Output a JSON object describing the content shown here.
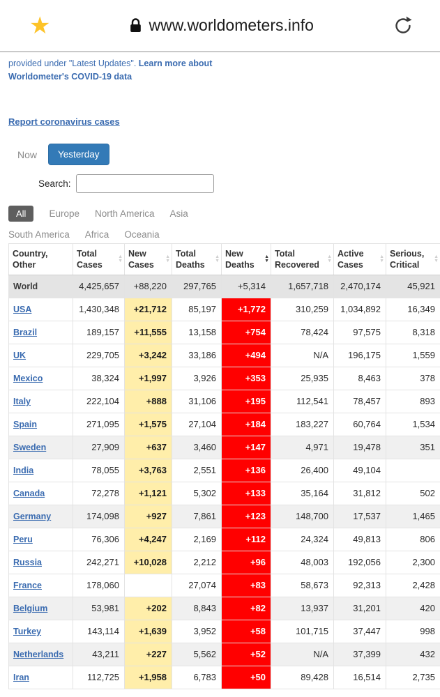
{
  "browser": {
    "url": "www.worldometers.info"
  },
  "intro": {
    "prefix": "provided under \"Latest Updates\". ",
    "link_part1": "Learn more about",
    "link_part2": "Worldometer's COVID-19 data"
  },
  "report_link_label": "Report coronavirus cases",
  "time_toggle": {
    "now_label": "Now",
    "yesterday_label": "Yesterday",
    "selected": "Yesterday"
  },
  "search": {
    "label": "Search:",
    "value": ""
  },
  "region_tabs": [
    {
      "label": "All",
      "active": true
    },
    {
      "label": "Europe",
      "active": false
    },
    {
      "label": "North America",
      "active": false
    },
    {
      "label": "Asia",
      "active": false
    },
    {
      "label": "South America",
      "active": false
    },
    {
      "label": "Africa",
      "active": false
    },
    {
      "label": "Oceania",
      "active": false
    }
  ],
  "colors": {
    "link_blue": "#3a6bb0",
    "button_blue": "#337ab7",
    "highlight_yellow": "#ffeeaa",
    "highlight_red": "#ff0000",
    "active_filter_gray": "#5e5e5e",
    "world_row_gray": "#e4e4e4"
  },
  "table": {
    "columns": [
      {
        "key": "country",
        "line1": "Country,",
        "line2": "Other",
        "sortable": false
      },
      {
        "key": "total-cases",
        "line1": "Total",
        "line2": "Cases",
        "sortable": true
      },
      {
        "key": "new-cases",
        "line1": "New",
        "line2": "Cases",
        "sortable": true
      },
      {
        "key": "total-deaths",
        "line1": "Total",
        "line2": "Deaths",
        "sortable": true
      },
      {
        "key": "new-deaths",
        "line1": "New",
        "line2": "Deaths",
        "sortable": true,
        "sorted": "desc"
      },
      {
        "key": "total-recovered",
        "line1": "Total",
        "line2": "Recovered",
        "sortable": true
      },
      {
        "key": "active-cases",
        "line1": "Active",
        "line2": "Cases",
        "sortable": true
      },
      {
        "key": "serious-critical",
        "line1": "Serious,",
        "line2": "Critical",
        "sortable": true
      }
    ],
    "world_row": {
      "country": "World",
      "total_cases": "4,425,657",
      "new_cases": "+88,220",
      "total_deaths": "297,765",
      "new_deaths": "+5,314",
      "total_recovered": "1,657,718",
      "active_cases": "2,470,174",
      "serious_critical": "45,921"
    },
    "rows": [
      {
        "country": "USA",
        "total_cases": "1,430,348",
        "new_cases": "+21,712",
        "total_deaths": "85,197",
        "new_deaths": "+1,772",
        "total_recovered": "310,259",
        "active_cases": "1,034,892",
        "serious_critical": "16,349",
        "striped": false
      },
      {
        "country": "Brazil",
        "total_cases": "189,157",
        "new_cases": "+11,555",
        "total_deaths": "13,158",
        "new_deaths": "+754",
        "total_recovered": "78,424",
        "active_cases": "97,575",
        "serious_critical": "8,318",
        "striped": false
      },
      {
        "country": "UK",
        "total_cases": "229,705",
        "new_cases": "+3,242",
        "total_deaths": "33,186",
        "new_deaths": "+494",
        "total_recovered": "N/A",
        "active_cases": "196,175",
        "serious_critical": "1,559",
        "striped": false
      },
      {
        "country": "Mexico",
        "total_cases": "38,324",
        "new_cases": "+1,997",
        "total_deaths": "3,926",
        "new_deaths": "+353",
        "total_recovered": "25,935",
        "active_cases": "8,463",
        "serious_critical": "378",
        "striped": false
      },
      {
        "country": "Italy",
        "total_cases": "222,104",
        "new_cases": "+888",
        "total_deaths": "31,106",
        "new_deaths": "+195",
        "total_recovered": "112,541",
        "active_cases": "78,457",
        "serious_critical": "893",
        "striped": false
      },
      {
        "country": "Spain",
        "total_cases": "271,095",
        "new_cases": "+1,575",
        "total_deaths": "27,104",
        "new_deaths": "+184",
        "total_recovered": "183,227",
        "active_cases": "60,764",
        "serious_critical": "1,534",
        "striped": false
      },
      {
        "country": "Sweden",
        "total_cases": "27,909",
        "new_cases": "+637",
        "total_deaths": "3,460",
        "new_deaths": "+147",
        "total_recovered": "4,971",
        "active_cases": "19,478",
        "serious_critical": "351",
        "striped": true
      },
      {
        "country": "India",
        "total_cases": "78,055",
        "new_cases": "+3,763",
        "total_deaths": "2,551",
        "new_deaths": "+136",
        "total_recovered": "26,400",
        "active_cases": "49,104",
        "serious_critical": "",
        "striped": false
      },
      {
        "country": "Canada",
        "total_cases": "72,278",
        "new_cases": "+1,121",
        "total_deaths": "5,302",
        "new_deaths": "+133",
        "total_recovered": "35,164",
        "active_cases": "31,812",
        "serious_critical": "502",
        "striped": false
      },
      {
        "country": "Germany",
        "total_cases": "174,098",
        "new_cases": "+927",
        "total_deaths": "7,861",
        "new_deaths": "+123",
        "total_recovered": "148,700",
        "active_cases": "17,537",
        "serious_critical": "1,465",
        "striped": true
      },
      {
        "country": "Peru",
        "total_cases": "76,306",
        "new_cases": "+4,247",
        "total_deaths": "2,169",
        "new_deaths": "+112",
        "total_recovered": "24,324",
        "active_cases": "49,813",
        "serious_critical": "806",
        "striped": false
      },
      {
        "country": "Russia",
        "total_cases": "242,271",
        "new_cases": "+10,028",
        "total_deaths": "2,212",
        "new_deaths": "+96",
        "total_recovered": "48,003",
        "active_cases": "192,056",
        "serious_critical": "2,300",
        "striped": false
      },
      {
        "country": "France",
        "total_cases": "178,060",
        "new_cases": "",
        "total_deaths": "27,074",
        "new_deaths": "+83",
        "total_recovered": "58,673",
        "active_cases": "92,313",
        "serious_critical": "2,428",
        "striped": false
      },
      {
        "country": "Belgium",
        "total_cases": "53,981",
        "new_cases": "+202",
        "total_deaths": "8,843",
        "new_deaths": "+82",
        "total_recovered": "13,937",
        "active_cases": "31,201",
        "serious_critical": "420",
        "striped": true
      },
      {
        "country": "Turkey",
        "total_cases": "143,114",
        "new_cases": "+1,639",
        "total_deaths": "3,952",
        "new_deaths": "+58",
        "total_recovered": "101,715",
        "active_cases": "37,447",
        "serious_critical": "998",
        "striped": false
      },
      {
        "country": "Netherlands",
        "total_cases": "43,211",
        "new_cases": "+227",
        "total_deaths": "5,562",
        "new_deaths": "+52",
        "total_recovered": "N/A",
        "active_cases": "37,399",
        "serious_critical": "432",
        "striped": true
      },
      {
        "country": "Iran",
        "total_cases": "112,725",
        "new_cases": "+1,958",
        "total_deaths": "6,783",
        "new_deaths": "+50",
        "total_recovered": "89,428",
        "active_cases": "16,514",
        "serious_critical": "2,735",
        "striped": false
      }
    ]
  }
}
